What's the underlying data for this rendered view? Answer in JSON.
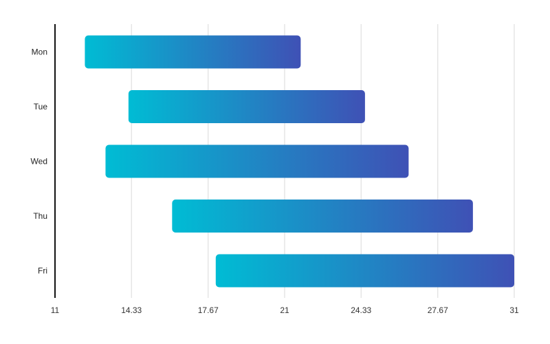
{
  "chart_data": {
    "type": "bar",
    "orientation": "horizontal-range",
    "categories": [
      "Mon",
      "Tue",
      "Wed",
      "Thu",
      "Fri"
    ],
    "series": [
      {
        "ranges": [
          [
            12.3,
            21.7
          ],
          [
            14.2,
            24.5
          ],
          [
            13.2,
            26.4
          ],
          [
            16.1,
            29.2
          ],
          [
            18.0,
            31.0
          ]
        ]
      }
    ],
    "x_ticks": [
      "11",
      "14.33",
      "17.67",
      "21",
      "24.33",
      "27.67",
      "31"
    ],
    "xlim": [
      11,
      31
    ],
    "title": "",
    "xlabel": "",
    "ylabel": "",
    "grid": "vertical",
    "legend": "none",
    "gradient": {
      "start": "#00bcd4",
      "end": "#3f51b5"
    },
    "colors": {
      "grid": "#d9d9d9",
      "axis": "#111111"
    }
  }
}
